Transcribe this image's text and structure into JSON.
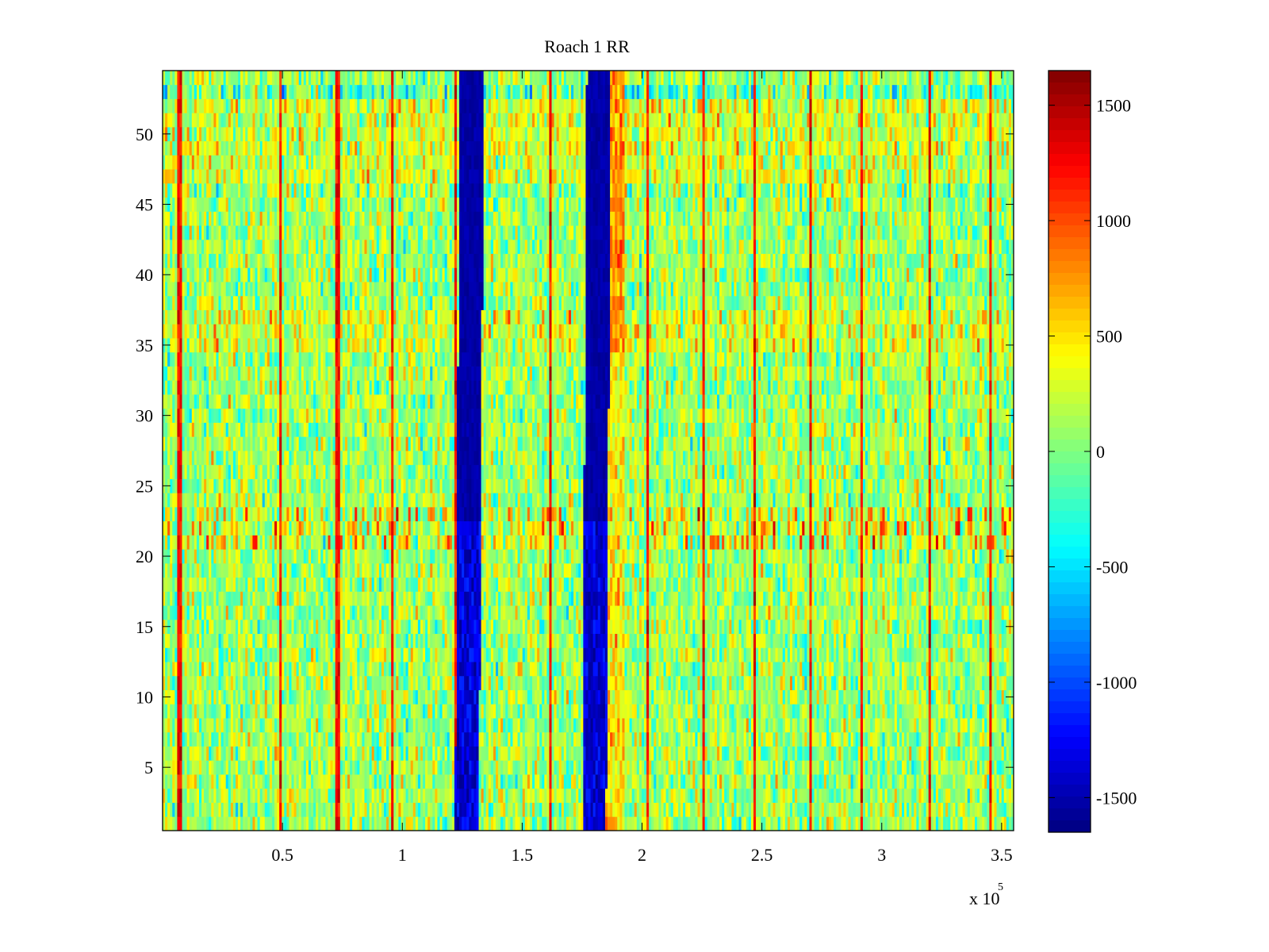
{
  "chart_data": {
    "type": "heatmap",
    "title": "Roach 1 RR",
    "xlabel": "",
    "ylabel": "",
    "x_exponent_label": "x 10",
    "x_exponent_power": "5",
    "xlim": [
      0,
      3.55
    ],
    "ylim": [
      0.5,
      54.5
    ],
    "x_ticks": [
      0.5,
      1,
      1.5,
      2,
      2.5,
      3,
      3.5
    ],
    "x_tick_labels": [
      "0.5",
      "1",
      "1.5",
      "2",
      "2.5",
      "3",
      "3.5"
    ],
    "y_ticks": [
      5,
      10,
      15,
      20,
      25,
      30,
      35,
      40,
      45,
      50
    ],
    "y_tick_labels": [
      "5",
      "10",
      "15",
      "20",
      "25",
      "30",
      "35",
      "40",
      "45",
      "50"
    ],
    "rows": 54,
    "colormap": "jet",
    "clim": [
      -1650,
      1650
    ],
    "colorbar_ticks": [
      1500,
      1000,
      500,
      0,
      -500,
      -1000,
      -1500
    ],
    "colorbar_tick_labels": [
      "1500",
      "1000",
      "500",
      "0",
      "-500",
      "-1000",
      "-1500"
    ],
    "background_value": 100,
    "features": {
      "cold_bands": [
        {
          "x_start": 1.22,
          "x_end": 1.32,
          "x_start_top": 1.24,
          "x_end_top": 1.34,
          "value": -1600
        },
        {
          "x_start": 1.75,
          "x_end": 1.85,
          "x_start_top": 1.77,
          "x_end_top": 1.87,
          "value": -1600
        }
      ],
      "warm_band": {
        "x_start": 1.85,
        "x_end": 1.93,
        "value": 450
      },
      "hot_line_x": [
        0.07,
        0.49,
        0.73,
        0.96,
        1.22,
        1.62,
        2.02,
        2.26,
        2.47,
        2.7,
        2.92,
        3.2,
        3.45
      ],
      "hot_line_value": 1200,
      "hot_row_range": [
        21,
        23
      ],
      "hot_row_value": 700,
      "warm_rows": [
        35,
        36,
        37,
        46,
        47,
        48,
        49,
        50,
        51,
        52
      ],
      "warm_row_value": 350,
      "cold_rows": [
        46,
        53
      ],
      "cold_row_value": -400
    }
  }
}
